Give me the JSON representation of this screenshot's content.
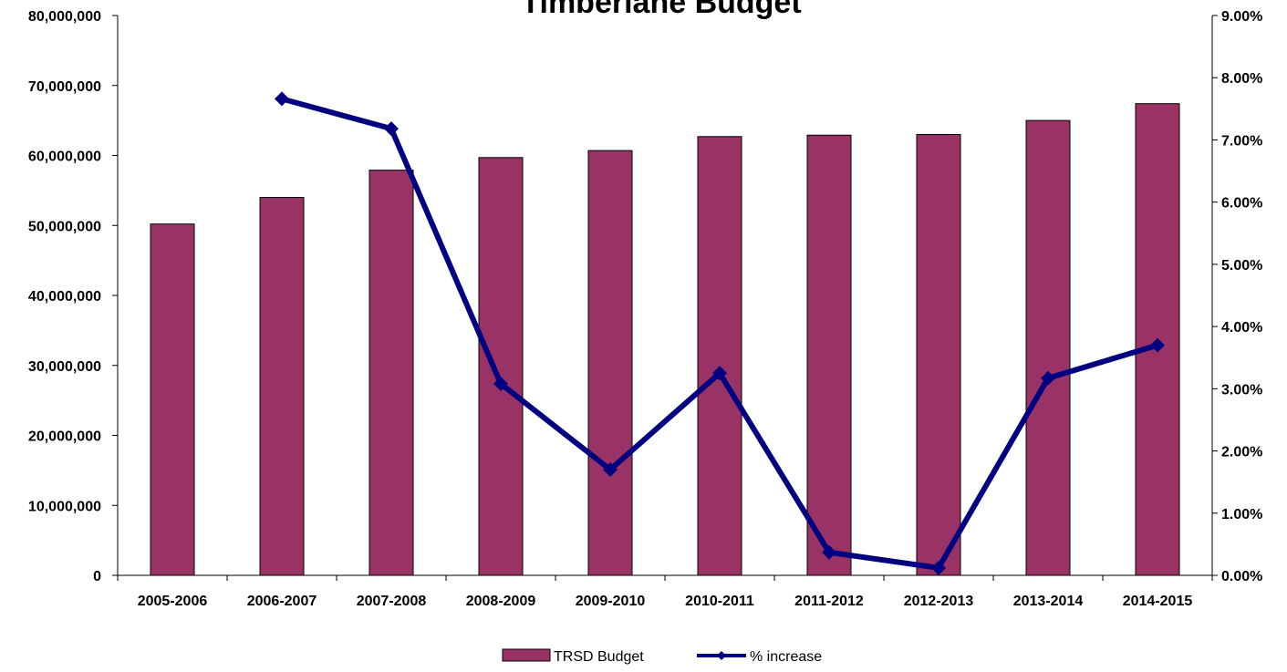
{
  "chart_data": {
    "type": "bar",
    "title": "Timberlane Budget",
    "categories": [
      "2005-2006",
      "2006-2007",
      "2007-2008",
      "2008-2009",
      "2009-2010",
      "2010-2011",
      "2011-2012",
      "2012-2013",
      "2013-2014",
      "2014-2015"
    ],
    "series": [
      {
        "name": "TRSD Budget",
        "type": "bar",
        "axis": "left",
        "color": "#993366",
        "values": [
          50200000,
          54000000,
          57900000,
          59700000,
          60700000,
          62700000,
          62900000,
          63000000,
          65000000,
          67400000
        ]
      },
      {
        "name": "% increase",
        "type": "line",
        "axis": "right",
        "color": "#000080",
        "values": [
          null,
          0.0766,
          0.0718,
          0.0308,
          0.017,
          0.0325,
          0.0037,
          0.0012,
          0.0317,
          0.037
        ]
      }
    ],
    "y_left": {
      "range": [
        0,
        80000000
      ],
      "tick_labels": [
        "0",
        "10,000,000",
        "20,000,000",
        "30,000,000",
        "40,000,000",
        "50,000,000",
        "60,000,000",
        "70,000,000",
        "80,000,000"
      ]
    },
    "y_right": {
      "range": [
        0,
        0.09
      ],
      "tick_labels": [
        "0.00%",
        "1.00%",
        "2.00%",
        "3.00%",
        "4.00%",
        "5.00%",
        "6.00%",
        "7.00%",
        "8.00%",
        "9.00%"
      ]
    },
    "grid": false,
    "legend": {
      "position": "bottom",
      "items": [
        "TRSD Budget",
        "% increase"
      ]
    }
  }
}
